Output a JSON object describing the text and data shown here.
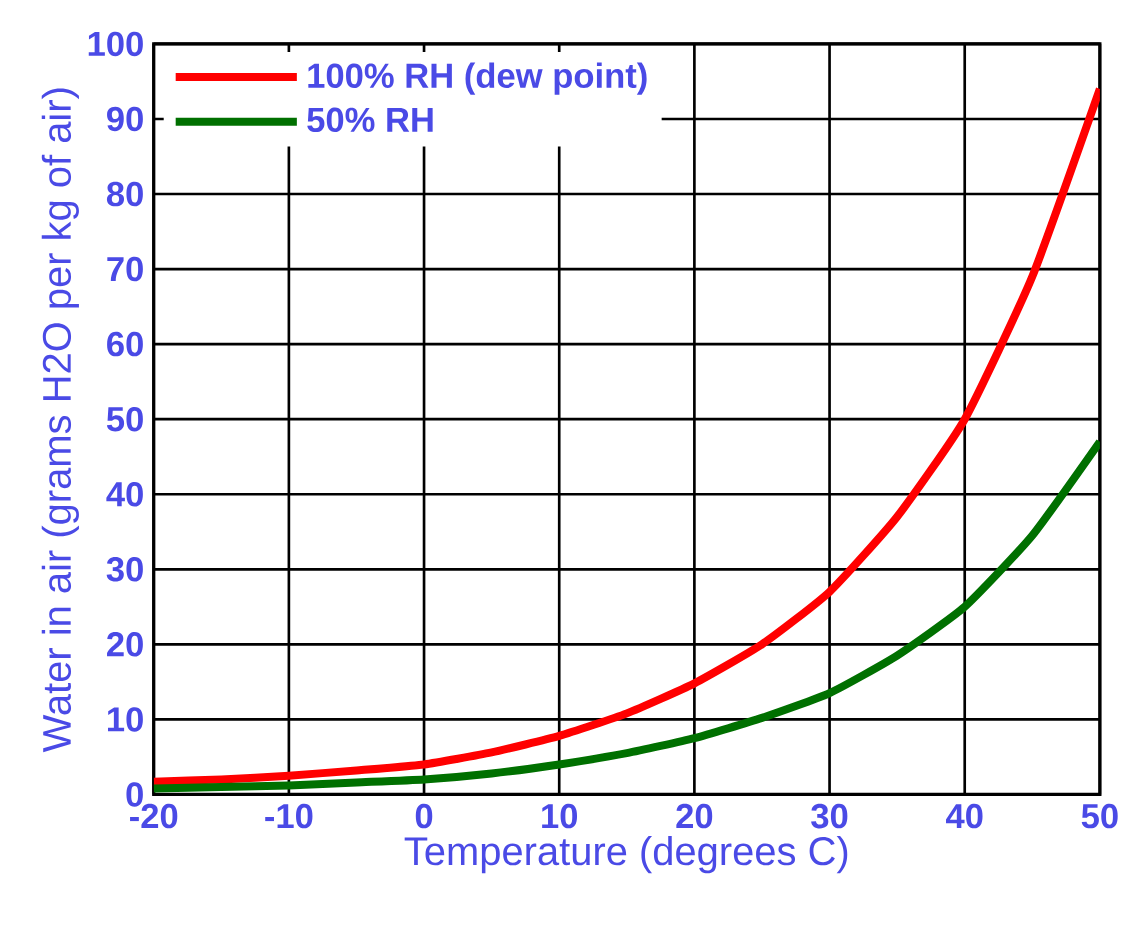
{
  "chart_data": {
    "type": "line",
    "xlabel": "Temperature (degrees C)",
    "ylabel": "Water in air (grams H2O per kg of air)",
    "x": [
      -20,
      -15,
      -10,
      -5,
      0,
      5,
      10,
      15,
      20,
      25,
      30,
      35,
      40,
      45,
      50
    ],
    "series": [
      {
        "name": "100% RH (dew point)",
        "color": "#ff0000",
        "values": [
          1.7,
          2.0,
          2.5,
          3.2,
          4.0,
          5.6,
          7.8,
          10.8,
          14.8,
          20.0,
          27.0,
          37.0,
          50.0,
          69.0,
          94.0
        ]
      },
      {
        "name": "50% RH",
        "color": "#007000",
        "values": [
          0.8,
          1.0,
          1.2,
          1.6,
          2.0,
          2.8,
          4.0,
          5.5,
          7.5,
          10.2,
          13.5,
          18.5,
          25.0,
          34.5,
          47.0
        ]
      }
    ],
    "xlim": [
      -20,
      50
    ],
    "xticks": [
      -20,
      -10,
      0,
      10,
      20,
      30,
      40,
      50
    ],
    "ylim": [
      0,
      100
    ],
    "yticks": [
      0,
      10,
      20,
      30,
      40,
      50,
      60,
      70,
      80,
      90,
      100
    ],
    "grid": true,
    "legend": "top left",
    "marker": "none",
    "line_style": "solid"
  }
}
